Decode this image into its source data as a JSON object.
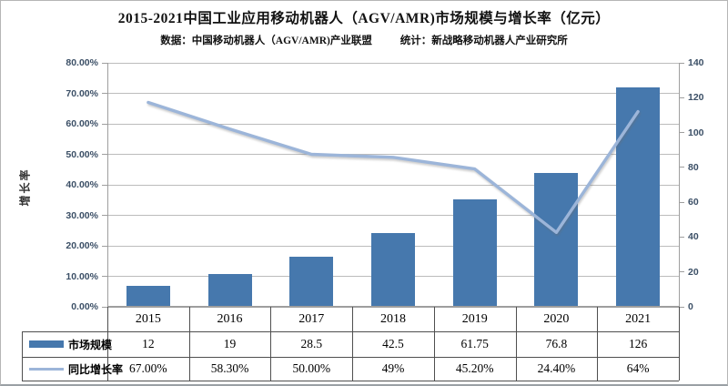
{
  "title": "2015-2021中国工业应用移动机器人（AGV/AMR)市场规模与增长率（亿元）",
  "subtitle": {
    "source": "数据：中国移动机器人（AGV/AMR)产业联盟",
    "stat": "统计：新战略移动机器人产业研究所"
  },
  "chart_data": {
    "type": "combo-bar-line",
    "categories": [
      "2015",
      "2016",
      "2017",
      "2018",
      "2019",
      "2020",
      "2021"
    ],
    "series": [
      {
        "name": "市场规模",
        "chart": "bar",
        "axis": "right",
        "values": [
          12,
          19,
          28.5,
          42.5,
          61.75,
          76.8,
          126
        ],
        "display": [
          "12",
          "19",
          "28.5",
          "42.5",
          "61.75",
          "76.8",
          "126"
        ],
        "color": "#4678ad"
      },
      {
        "name": "同比增长率",
        "chart": "line",
        "axis": "left",
        "values": [
          67.0,
          58.3,
          50.0,
          49.0,
          45.2,
          24.4,
          64.0
        ],
        "display": [
          "67.00%",
          "58.30%",
          "50.00%",
          "49%",
          "45.20%",
          "24.40%",
          "64%"
        ],
        "color": "#9cb5d9"
      }
    ],
    "left_axis": {
      "label": "增长率",
      "min": 0,
      "max": 80,
      "step": 10,
      "tick_labels": [
        "80.00%",
        "70.00%",
        "60.00%",
        "50.00%",
        "40.00%",
        "30.00%",
        "20.00%",
        "10.00%",
        "0.00%"
      ]
    },
    "right_axis": {
      "min": 0,
      "max": 140,
      "step": 20,
      "tick_labels": [
        "140",
        "120",
        "100",
        "80",
        "60",
        "40",
        "20",
        "0"
      ]
    },
    "grid": true,
    "legend_position": "table-left",
    "colors": {
      "bar": "#4678ad",
      "line": "#9cb5d9",
      "gridline": "#bcbcbc",
      "axis": "#9e9e9e",
      "tick_text": "#3b4f66",
      "table_border": "#4f4f4f"
    }
  }
}
